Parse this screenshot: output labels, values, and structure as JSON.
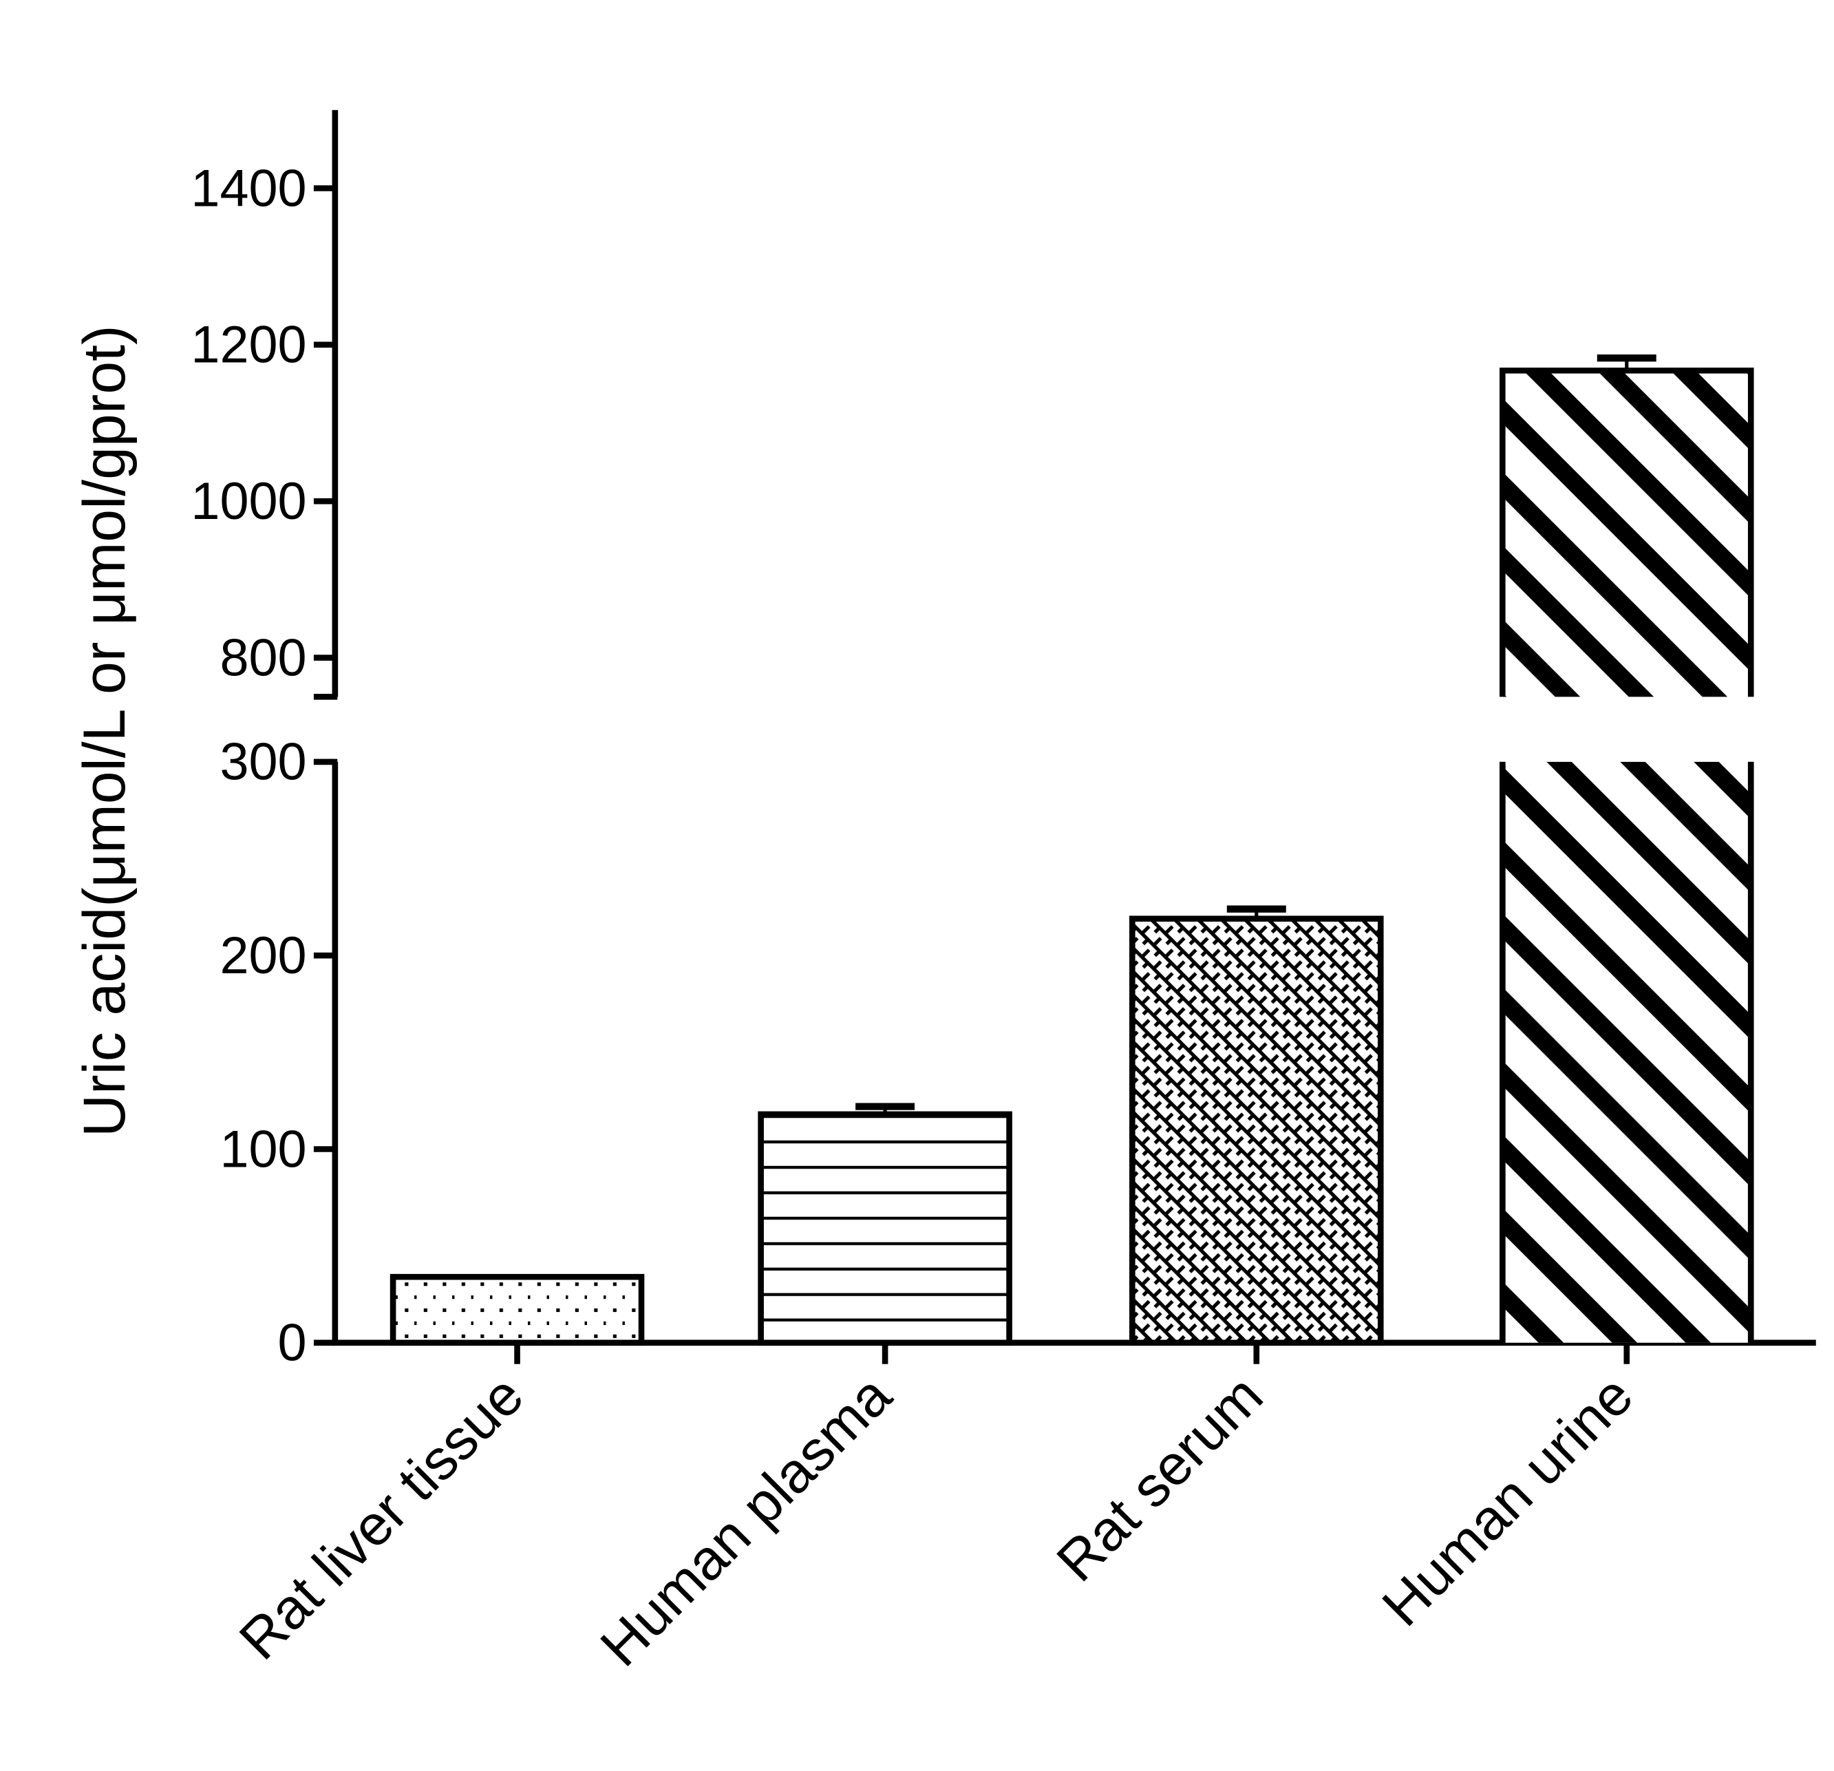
{
  "chart_data": {
    "type": "bar",
    "title": "",
    "xlabel": "",
    "ylabel": "Uric acid(μmol/L or μmol/gprot)",
    "categories": [
      "Rat liver tissue",
      "Human plasma",
      "Rat serum",
      "Human urine"
    ],
    "values": [
      34,
      118,
      219,
      1167
    ],
    "error_upper": [
      34,
      122,
      224,
      1183
    ],
    "fill_patterns": [
      "dots",
      "horizontal-lines",
      "crosshatch",
      "diagonal-stripes"
    ],
    "y_axis_broken": true,
    "y_segments": [
      {
        "range": [
          0,
          300
        ],
        "ticks": [
          0,
          100,
          200,
          300
        ]
      },
      {
        "range": [
          750,
          1500
        ],
        "ticks": [
          800,
          1000,
          1200,
          1400
        ]
      }
    ],
    "tick_labels": [
      "0",
      "100",
      "200",
      "300",
      "800",
      "1000",
      "1200",
      "1400"
    ],
    "grid": false,
    "legend": "none",
    "colors": {
      "bar_stroke": "#000000",
      "bar_fill": "#ffffff"
    }
  }
}
